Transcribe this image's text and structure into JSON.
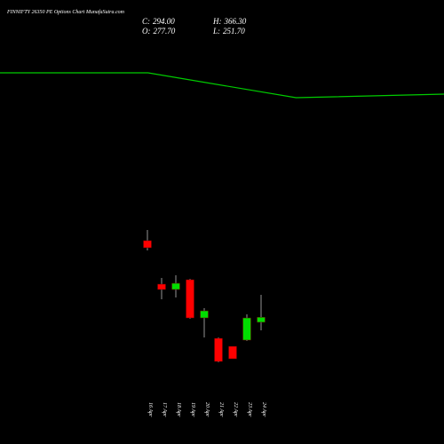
{
  "chart_data": {
    "type": "candlestick",
    "title": "FINNIFTY 26350 PE Options Chart MunafaSutra.com",
    "summary": [
      {
        "label": "C:",
        "value": 294.0,
        "value_label": "294.00"
      },
      {
        "label": "O:",
        "value": 277.7,
        "value_label": "277.70"
      },
      {
        "label": "H:",
        "value": 366.3,
        "value_label": "366.30"
      },
      {
        "label": "L:",
        "value": 251.7,
        "value_label": "251.70"
      }
    ],
    "categories": [
      "16 Apr",
      "17 Apr",
      "18 Apr",
      "19 Apr",
      "20 Apr",
      "21 Apr",
      "22 Apr",
      "23 Apr",
      "24 Apr"
    ],
    "open": [
      541.1,
      400.7,
      383.5,
      415.0,
      291.8,
      225.9,
      200.1,
      220.2,
      277.7
    ],
    "high": [
      575.4,
      420.7,
      429.3,
      417.9,
      323.3,
      228.8,
      200.1,
      303.3,
      366.3
    ],
    "low": [
      509.6,
      352.0,
      357.7,
      288.9,
      228.8,
      148.6,
      160.0,
      217.3,
      251.7
    ],
    "close": [
      518.2,
      383.5,
      403.5,
      291.8,
      314.7,
      151.4,
      160.0,
      291.8,
      294.0
    ],
    "up_color": "#00dd00",
    "down_color": "#ff0000",
    "line": {
      "color": "#00cc00",
      "values": [
        1082.6,
        1082.6,
        1002.3,
        1013.8
      ]
    },
    "ylim": [
      -115.0,
      1317.5
    ]
  }
}
